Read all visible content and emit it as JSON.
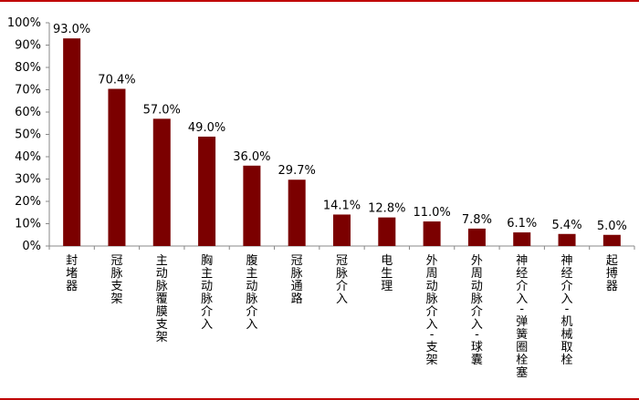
{
  "chart_data": {
    "type": "bar",
    "categories": [
      "封堵器",
      "冠脉支架",
      "主动脉覆膜支架",
      "胸主动脉介入",
      "腹主动脉介入",
      "冠脉通路",
      "冠脉介入",
      "电生理",
      "外周动脉介入-支架",
      "外周动脉介入-球囊",
      "神经介入-弹簧圈栓塞",
      "神经介入-机械取栓",
      "起搏器"
    ],
    "values": [
      93.0,
      70.4,
      57.0,
      49.0,
      36.0,
      29.7,
      14.1,
      12.8,
      11.0,
      7.8,
      6.1,
      5.4,
      5.0
    ],
    "value_labels": [
      "93.0%",
      "70.4%",
      "57.0%",
      "49.0%",
      "36.0%",
      "29.7%",
      "14.1%",
      "12.8%",
      "11.0%",
      "7.8%",
      "6.1%",
      "5.4%",
      "5.0%"
    ],
    "yticks": [
      "0%",
      "10%",
      "20%",
      "30%",
      "40%",
      "50%",
      "60%",
      "70%",
      "80%",
      "90%",
      "100%"
    ],
    "ylim": [
      0,
      100
    ],
    "grid": false,
    "bar_color": "#7b0000",
    "frame_color": "#c00000"
  }
}
